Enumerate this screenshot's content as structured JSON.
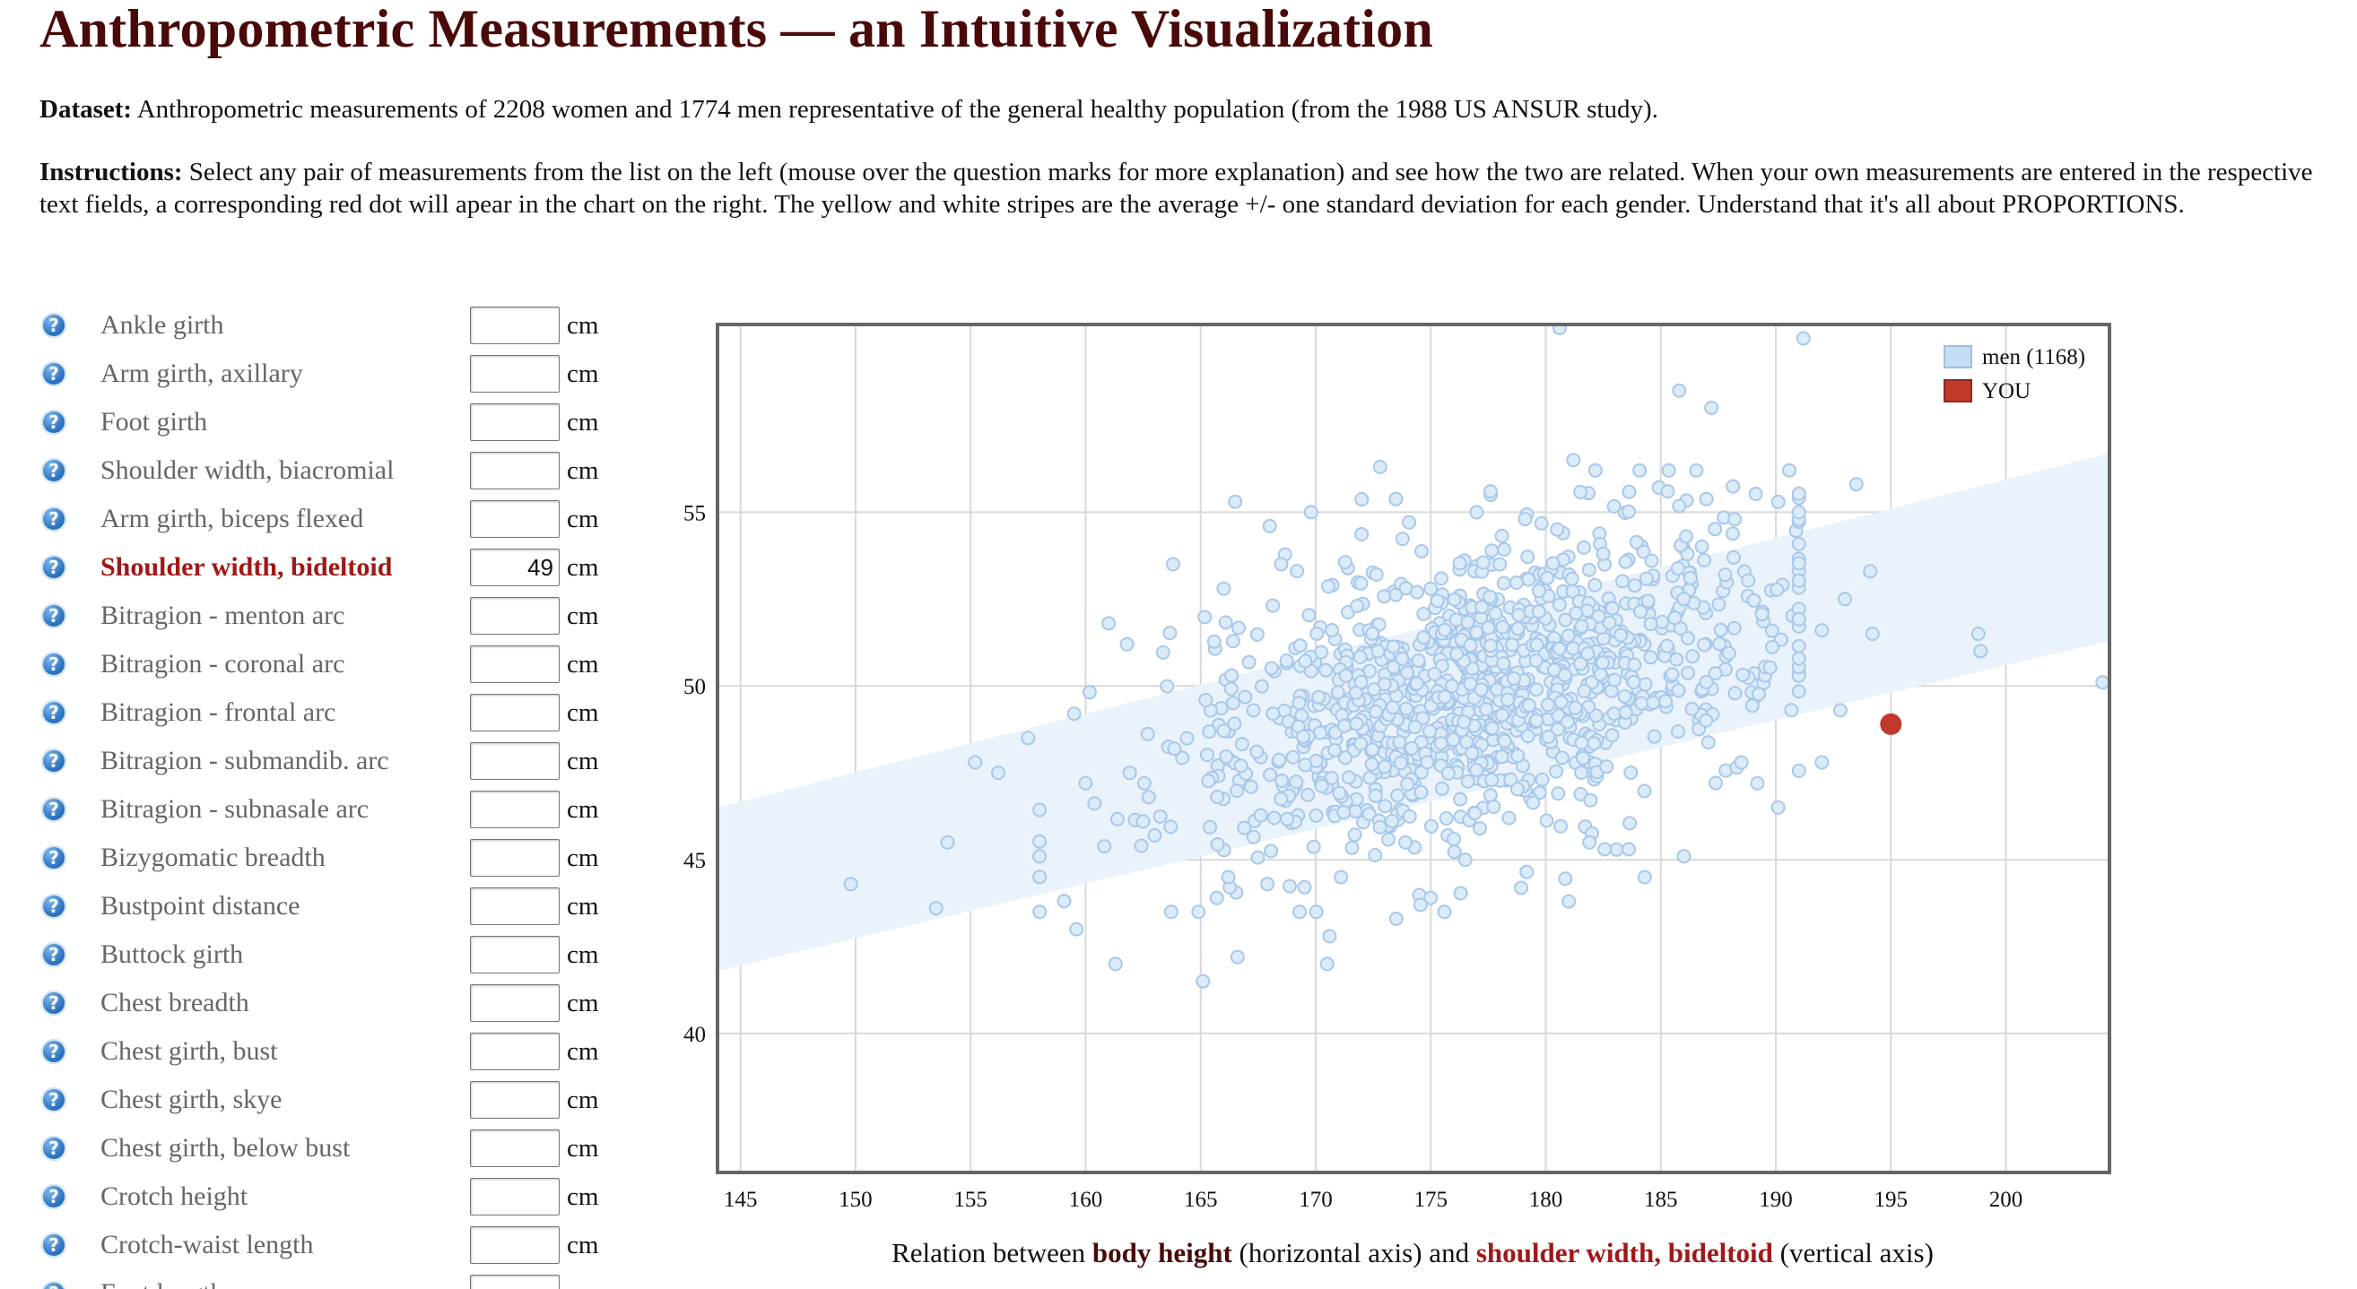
{
  "title": "Anthropometric Measurements — an Intuitive Visualization",
  "dataset": {
    "label": "Dataset:",
    "text": " Anthropometric measurements of 2208 women and 1774 men representative of the general healthy population (from the 1988 US ANSUR study)."
  },
  "instructions": {
    "label": "Instructions:",
    "text": " Select any pair of measurements from the list on the left (mouse over the question marks for more explanation) and see how the two are related. When your own measurements are entered in the respective text fields, a corresponding red dot will apear in the chart on the right. The yellow and white stripes are the average +/- one standard deviation for each gender. Understand that it's all about PROPORTIONS."
  },
  "help_glyph": "?",
  "unit": "cm",
  "measurements": [
    {
      "label": "Ankle girth",
      "value": ""
    },
    {
      "label": "Arm girth, axillary",
      "value": ""
    },
    {
      "label": "Foot girth",
      "value": ""
    },
    {
      "label": "Shoulder width, biacromial",
      "value": ""
    },
    {
      "label": "Arm girth, biceps flexed",
      "value": ""
    },
    {
      "label": "Shoulder width, bideltoid",
      "value": "49"
    },
    {
      "label": "Bitragion - menton arc",
      "value": ""
    },
    {
      "label": "Bitragion - coronal arc",
      "value": ""
    },
    {
      "label": "Bitragion - frontal arc",
      "value": ""
    },
    {
      "label": "Bitragion - submandib. arc",
      "value": ""
    },
    {
      "label": "Bitragion - subnasale arc",
      "value": ""
    },
    {
      "label": "Bizygomatic breadth",
      "value": ""
    },
    {
      "label": "Bustpoint distance",
      "value": ""
    },
    {
      "label": "Buttock girth",
      "value": ""
    },
    {
      "label": "Chest breadth",
      "value": ""
    },
    {
      "label": "Chest girth, bust",
      "value": ""
    },
    {
      "label": "Chest girth, skye",
      "value": ""
    },
    {
      "label": "Chest girth, below bust",
      "value": ""
    },
    {
      "label": "Crotch height",
      "value": ""
    },
    {
      "label": "Crotch-waist length",
      "value": ""
    },
    {
      "label": "Foot length",
      "value": ""
    }
  ],
  "selected_index": 5,
  "caption": {
    "pre": "Relation between ",
    "x_name": "body height",
    "mid": " (horizontal axis) and ",
    "y_name": "shoulder width, bideltoid",
    "post": " (vertical axis)"
  },
  "colors": {
    "title": "#4a0a0a",
    "selected": "#a01818",
    "men_dot_fill": "#dcebf8",
    "men_dot_stroke": "#a8c8ea",
    "band": "#eaf2fc",
    "you": "#c0392b"
  },
  "chart_data": {
    "type": "scatter",
    "xlabel": "body height",
    "ylabel": "shoulder width, bideltoid",
    "xlim": [
      144,
      204.5
    ],
    "ylim": [
      36,
      60.4
    ],
    "x_ticks": [
      145,
      150,
      155,
      160,
      165,
      170,
      175,
      180,
      185,
      190,
      195,
      200
    ],
    "y_ticks": [
      40,
      45,
      50,
      55
    ],
    "grid": true,
    "legend": {
      "position": "top-right",
      "entries": [
        "men (1168)",
        "YOU"
      ]
    },
    "band": {
      "x": [
        144,
        204.5
      ],
      "lower": [
        41.8,
        51.3
      ],
      "upper": [
        46.5,
        56.7
      ]
    },
    "you": {
      "x": 195,
      "y": 48.9
    },
    "series": [
      {
        "name": "men (1168)",
        "n": 1168,
        "mean_x": 177.4,
        "sd_x": 6.7,
        "mean_y": 49.8,
        "sd_y": 2.6,
        "slope": 0.16,
        "seed": 17,
        "points": [
          [
            180.6,
            60.3
          ],
          [
            191.2,
            60.0
          ],
          [
            185.8,
            58.5
          ],
          [
            187.2,
            58.0
          ],
          [
            191.0,
            55.0
          ],
          [
            193.5,
            55.8
          ],
          [
            181.2,
            56.5
          ],
          [
            172.8,
            56.3
          ],
          [
            166.5,
            55.3
          ],
          [
            168.0,
            54.6
          ],
          [
            169.8,
            55.0
          ],
          [
            168.5,
            53.5
          ],
          [
            166.0,
            52.8
          ],
          [
            163.8,
            53.5
          ],
          [
            161.0,
            51.8
          ],
          [
            161.8,
            51.2
          ],
          [
            159.5,
            49.2
          ],
          [
            157.5,
            48.5
          ],
          [
            156.2,
            47.5
          ],
          [
            155.2,
            47.8
          ],
          [
            154.0,
            45.5
          ],
          [
            149.8,
            44.3
          ],
          [
            153.5,
            43.6
          ],
          [
            160.0,
            47.2
          ],
          [
            159.6,
            43.0
          ],
          [
            161.3,
            42.0
          ],
          [
            165.1,
            41.5
          ],
          [
            166.6,
            42.2
          ],
          [
            170.5,
            42.0
          ],
          [
            170.6,
            42.8
          ],
          [
            173.5,
            43.3
          ],
          [
            175.6,
            43.5
          ],
          [
            181.0,
            43.8
          ],
          [
            184.3,
            44.5
          ],
          [
            186.0,
            45.1
          ],
          [
            183.6,
            45.3
          ],
          [
            193.0,
            52.5
          ],
          [
            194.2,
            51.5
          ],
          [
            194.1,
            53.3
          ],
          [
            192.0,
            51.6
          ],
          [
            192.8,
            49.3
          ],
          [
            192.0,
            47.8
          ],
          [
            190.1,
            46.5
          ],
          [
            189.2,
            47.2
          ],
          [
            188.5,
            47.8
          ],
          [
            198.9,
            51.0
          ],
          [
            198.8,
            51.5
          ],
          [
            204.2,
            50.1
          ],
          [
            185.3,
            55.6
          ],
          [
            186.1,
            54.3
          ],
          [
            187.8,
            53.2
          ],
          [
            177.6,
            55.6
          ],
          [
            171.8,
            52.3
          ],
          [
            175.0,
            52.8
          ],
          [
            178.0,
            53.5
          ],
          [
            179.1,
            54.8
          ],
          [
            180.5,
            54.5
          ],
          [
            182.5,
            53.8
          ],
          [
            184.6,
            53.6
          ],
          [
            176.5,
            45.0
          ],
          [
            178.4,
            46.2
          ],
          [
            173.9,
            45.5
          ],
          [
            171.1,
            44.5
          ],
          [
            167.9,
            44.3
          ],
          [
            166.2,
            44.5
          ],
          [
            165.7,
            43.9
          ],
          [
            168.2,
            46.2
          ],
          [
            181.9,
            45.5
          ],
          [
            163.0,
            45.7
          ],
          [
            162.5,
            46.1
          ],
          [
            169.3,
            43.5
          ],
          [
            175.0,
            43.9
          ]
        ]
      }
    ]
  }
}
